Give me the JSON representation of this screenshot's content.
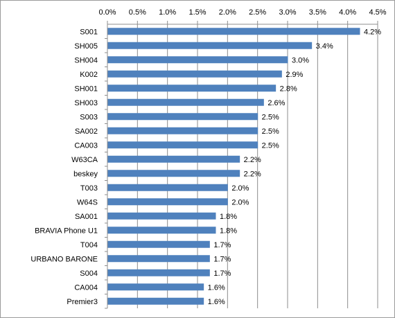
{
  "chart_data": {
    "type": "bar",
    "orientation": "horizontal",
    "categories": [
      "S001",
      "SH005",
      "SH004",
      "K002",
      "SH001",
      "SH003",
      "S003",
      "SA002",
      "CA003",
      "W63CA",
      "beskey",
      "T003",
      "W64S",
      "SA001",
      "BRAVIA Phone U1",
      "T004",
      "URBANO BARONE",
      "S004",
      "CA004",
      "Premier3"
    ],
    "values": [
      4.2,
      3.4,
      3.0,
      2.9,
      2.8,
      2.6,
      2.5,
      2.5,
      2.5,
      2.2,
      2.2,
      2.0,
      2.0,
      1.8,
      1.8,
      1.7,
      1.7,
      1.7,
      1.6,
      1.6
    ],
    "value_labels": [
      "4.2%",
      "3.4%",
      "3.0%",
      "2.9%",
      "2.8%",
      "2.6%",
      "2.5%",
      "2.5%",
      "2.5%",
      "2.2%",
      "2.2%",
      "2.0%",
      "2.0%",
      "1.8%",
      "1.8%",
      "1.7%",
      "1.7%",
      "1.7%",
      "1.6%",
      "1.6%"
    ],
    "x_ticks": [
      "0.0%",
      "0.5%",
      "1.0%",
      "1.5%",
      "2.0%",
      "2.5%",
      "3.0%",
      "3.5%",
      "4.0%",
      "4.5%"
    ],
    "xlim": [
      0,
      4.5
    ],
    "x_axis_position": "top",
    "grid": true,
    "legend": "none",
    "title": "",
    "xlabel": "",
    "ylabel": "",
    "bar_color": "#4f81bd",
    "grid_color": "#8c8c8c"
  }
}
